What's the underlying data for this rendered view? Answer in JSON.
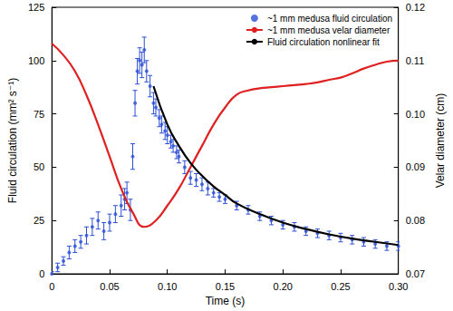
{
  "chart_data": {
    "type": "scatter",
    "x_label": "Time (s)",
    "y_label": "Fluid circulation (mm² s⁻¹)",
    "y2_label": "Velar diameter (cm)",
    "xlim": [
      0,
      0.3
    ],
    "xticks": [
      0,
      {
        "value": 0.05,
        "label": "0.05"
      },
      {
        "value": 0.1,
        "label": "0.10"
      },
      {
        "value": 0.15,
        "label": "0.15"
      },
      {
        "value": 0.2,
        "label": "0.20"
      },
      {
        "value": 0.25,
        "label": "0.25"
      },
      {
        "value": 0.3,
        "label": "0.30"
      }
    ],
    "ylim": [
      0,
      125
    ],
    "yticks": [
      0,
      25,
      50,
      75,
      100,
      125
    ],
    "y2lim": [
      0.07,
      0.12
    ],
    "y2ticks": [
      0.07,
      0.08,
      0.09,
      {
        "value": 0.1,
        "label": "0.10"
      },
      0.11,
      0.12
    ],
    "grid": false,
    "legend": "top-right",
    "series": [
      {
        "name": "~1 mm medusa fluid circulation",
        "type": "scatter",
        "marker": "circle",
        "color": "#2b4fd6",
        "x": [
          0,
          0.005,
          0.01,
          0.015,
          0.02,
          0.025,
          0.03,
          0.035,
          0.04,
          0.045,
          0.05,
          0.055,
          0.06,
          0.063,
          0.065,
          0.068,
          0.07,
          0.072,
          0.074,
          0.076,
          0.078,
          0.08,
          0.082,
          0.085,
          0.088,
          0.09,
          0.093,
          0.095,
          0.098,
          0.1,
          0.103,
          0.105,
          0.108,
          0.11,
          0.115,
          0.12,
          0.125,
          0.13,
          0.135,
          0.14,
          0.145,
          0.15,
          0.16,
          0.17,
          0.18,
          0.19,
          0.2,
          0.21,
          0.22,
          0.23,
          0.24,
          0.25,
          0.26,
          0.27,
          0.28,
          0.29,
          0.3
        ],
        "values": [
          0,
          3,
          6,
          10,
          13,
          15,
          18,
          22,
          25,
          20,
          24,
          28,
          32,
          35,
          38,
          30,
          55,
          80,
          95,
          100,
          98,
          105,
          95,
          88,
          80,
          78,
          73,
          70,
          67,
          65,
          62,
          60,
          57,
          55,
          50,
          45,
          44,
          42,
          40,
          38,
          36,
          35,
          32,
          30,
          27,
          25,
          23,
          22,
          20,
          19,
          18,
          17,
          16,
          15,
          14,
          13,
          13
        ],
        "errors": [
          1,
          2,
          2,
          3,
          3,
          3,
          4,
          4,
          4,
          4,
          4,
          4,
          5,
          5,
          5,
          5,
          6,
          6,
          6,
          6,
          6,
          6,
          5,
          5,
          5,
          4,
          4,
          4,
          4,
          4,
          3,
          3,
          3,
          3,
          3,
          3,
          3,
          3,
          3,
          2,
          2,
          2,
          2,
          2,
          2,
          2,
          2,
          2,
          2,
          2,
          2,
          2,
          2,
          2,
          2,
          2,
          2
        ]
      },
      {
        "name": "~1 mm medusa velar diameter",
        "type": "line",
        "axis": "y2",
        "color": "#e02020",
        "line_style": "solid",
        "x": [
          0,
          0.01,
          0.02,
          0.03,
          0.04,
          0.05,
          0.06,
          0.07,
          0.08,
          0.09,
          0.1,
          0.11,
          0.12,
          0.13,
          0.14,
          0.15,
          0.16,
          0.17,
          0.18,
          0.19,
          0.2,
          0.21,
          0.22,
          0.23,
          0.24,
          0.25,
          0.26,
          0.27,
          0.28,
          0.29,
          0.3
        ],
        "values": [
          0.1132,
          0.111,
          0.108,
          0.1035,
          0.098,
          0.092,
          0.086,
          0.0815,
          0.0788,
          0.08,
          0.0828,
          0.086,
          0.09,
          0.094,
          0.098,
          0.1012,
          0.1036,
          0.1044,
          0.1048,
          0.105,
          0.1052,
          0.1054,
          0.1056,
          0.1059,
          0.1064,
          0.1068,
          0.1076,
          0.1085,
          0.1092,
          0.1098,
          0.11
        ]
      },
      {
        "name": "Fluid circulation nonlinear fit",
        "type": "line",
        "color": "#000000",
        "line_style": "solid",
        "x": [
          0.088,
          0.1,
          0.11,
          0.12,
          0.13,
          0.14,
          0.15,
          0.16,
          0.18,
          0.2,
          0.22,
          0.24,
          0.26,
          0.28,
          0.3
        ],
        "values": [
          88,
          70,
          60,
          52,
          46,
          41,
          37,
          33,
          28,
          24,
          21,
          18.5,
          16.5,
          15,
          13.5
        ]
      }
    ]
  }
}
